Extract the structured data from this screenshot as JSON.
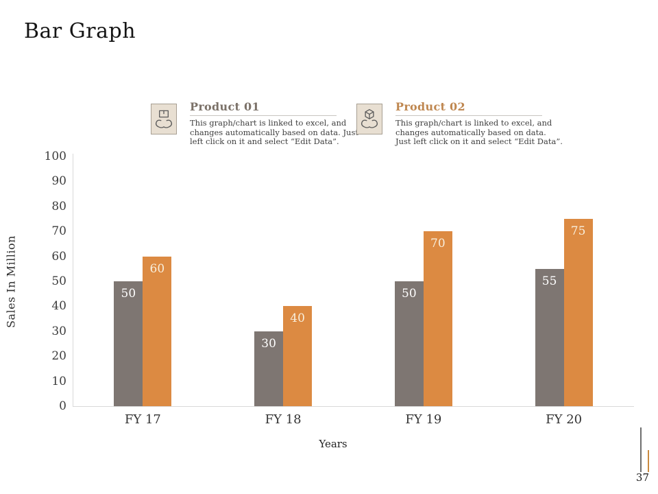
{
  "page": {
    "title": "Bar Graph",
    "page_number": "37"
  },
  "legend": [
    {
      "title": "Product 01",
      "icon": "hands-holding-package-icon",
      "title_color": "#7b7168",
      "lines": [
        "This graph/chart is linked to excel, and",
        "changes automatically based on data. Just",
        "left click on it and select “Edit Data”."
      ]
    },
    {
      "title": "Product 02",
      "icon": "hands-holding-cube-icon",
      "title_color": "#bf8750",
      "lines": [
        "This graph/chart is linked to excel, and",
        "changes automatically based on data.",
        "Just left click on it  and select “Edit Data”."
      ]
    }
  ],
  "chart_data": {
    "type": "bar",
    "categories": [
      "FY 17",
      "FY 18",
      "FY 19",
      "FY 20"
    ],
    "series": [
      {
        "name": "Product 01",
        "color": "#7e7672",
        "label_color": "#ffffff",
        "values": [
          50,
          30,
          50,
          55
        ]
      },
      {
        "name": "Product 02",
        "color": "#dc8a42",
        "label_color": "#f8efdd",
        "values": [
          60,
          40,
          70,
          75
        ]
      }
    ],
    "title": "",
    "xlabel": "Years",
    "ylabel": "Sales In Million",
    "ylim": [
      0,
      100
    ],
    "ytick_step": 10,
    "grid": false,
    "legend_position": "top",
    "value_labels": "inside-top"
  },
  "colors": {
    "bar_gray": "#7e7672",
    "bar_orange": "#dc8a42",
    "axis_line": "#d9d9d9",
    "legend_icon_bg": "#e8dfd2"
  }
}
